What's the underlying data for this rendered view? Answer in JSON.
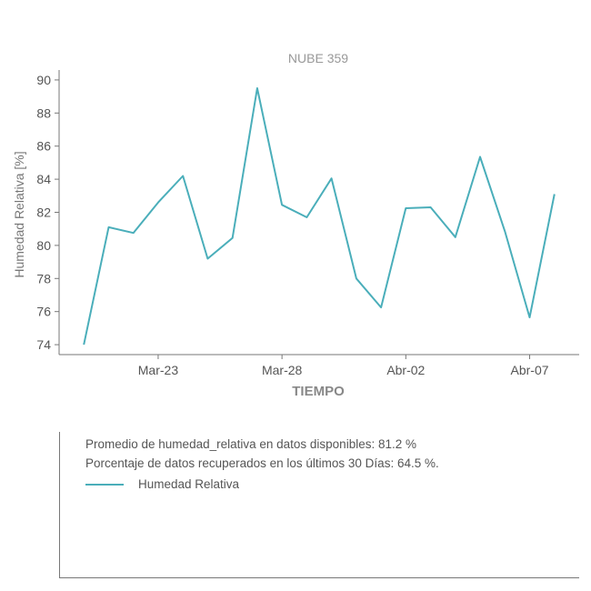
{
  "chart_data": {
    "type": "line",
    "title": "NUBE 359",
    "xlabel": "TIEMPO",
    "ylabel": "Humedad Relativa [%]",
    "ylim": [
      73.4,
      90.6
    ],
    "yticks": [
      74,
      76,
      78,
      80,
      82,
      84,
      86,
      88,
      90
    ],
    "x_start": "2023-03-19",
    "x_end": "2023-04-09",
    "xticks": [
      {
        "date": "2023-03-23",
        "label": "Mar-23"
      },
      {
        "date": "2023-03-28",
        "label": "Mar-28"
      },
      {
        "date": "2023-04-02",
        "label": "Abr-02"
      },
      {
        "date": "2023-04-07",
        "label": "Abr-07"
      }
    ],
    "grid": false,
    "series": [
      {
        "name": "Humedad Relativa",
        "color": "#4aaeba",
        "x": [
          "2023-03-20",
          "2023-03-21",
          "2023-03-22",
          "2023-03-23",
          "2023-03-24",
          "2023-03-25",
          "2023-03-26",
          "2023-03-27",
          "2023-03-28",
          "2023-03-29",
          "2023-03-30",
          "2023-03-31",
          "2023-04-01",
          "2023-04-02",
          "2023-04-03",
          "2023-04-04",
          "2023-04-05",
          "2023-04-06",
          "2023-04-07",
          "2023-04-08"
        ],
        "values": [
          74.0,
          81.1,
          80.75,
          82.6,
          84.2,
          79.2,
          80.45,
          89.5,
          82.45,
          81.7,
          84.05,
          78.0,
          76.25,
          82.25,
          82.3,
          80.5,
          85.35,
          80.85,
          75.65,
          83.1
        ]
      }
    ]
  },
  "info": {
    "average_text": "Promedio de humedad_relativa en datos disponibles: 81.2 %",
    "recovered_text": "Porcentaje de datos recuperados en los últimos 30 Días: 64.5 %.",
    "legend_label": "Humedad Relativa"
  }
}
